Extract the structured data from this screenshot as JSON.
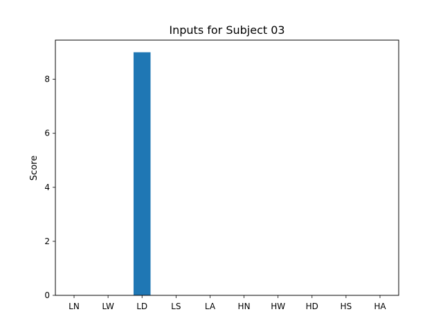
{
  "chart_data": {
    "type": "bar",
    "title": "Inputs for Subject 03",
    "xlabel": "",
    "ylabel": "Score",
    "categories": [
      "LN",
      "LW",
      "LD",
      "LS",
      "LA",
      "HN",
      "HW",
      "HD",
      "HS",
      "HA"
    ],
    "values": [
      0,
      0,
      9,
      0,
      0,
      0,
      0,
      0,
      0,
      0
    ],
    "ylim": [
      0,
      9.45
    ],
    "yticks": [
      0,
      2,
      4,
      6,
      8
    ],
    "grid": false,
    "bar_color": "#1f77b4"
  }
}
